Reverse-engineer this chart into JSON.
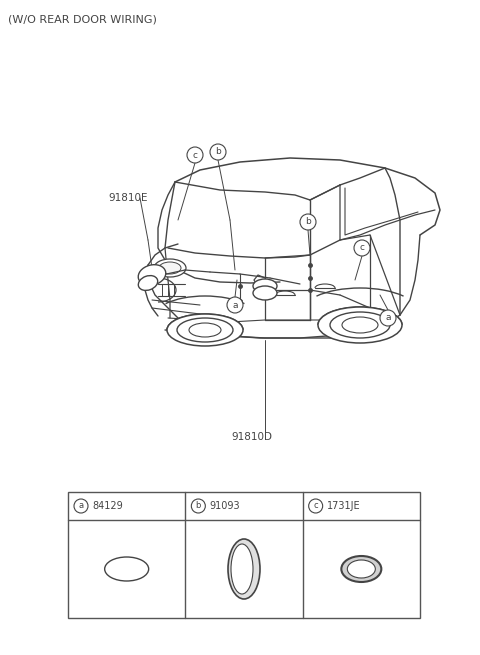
{
  "title_text": "(W/O REAR DOOR WIRING)",
  "bg_color": "#ffffff",
  "title_fontsize": 8.0,
  "label_91810E": "91810E",
  "label_91810D": "91810D",
  "part_a_code": "84129",
  "part_b_code": "91093",
  "part_c_code": "1731JE",
  "line_color": "#444444",
  "table_border_color": "#555555",
  "fig_width": 4.8,
  "fig_height": 6.55,
  "dpi": 100
}
